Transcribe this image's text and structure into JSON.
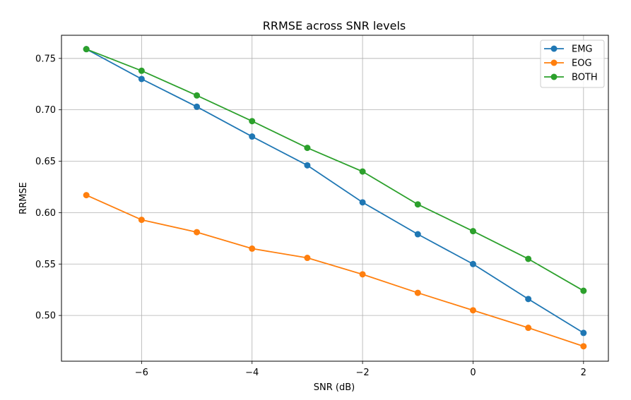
{
  "chart_data": {
    "type": "line",
    "title": "RRMSE across SNR levels",
    "xlabel": "SNR (dB)",
    "ylabel": "RRMSE",
    "x": [
      -7,
      -6,
      -5,
      -4,
      -3,
      -2,
      -1,
      0,
      1,
      2
    ],
    "series": [
      {
        "name": "EMG",
        "color": "#1f77b4",
        "values": [
          0.759,
          0.73,
          0.703,
          0.674,
          0.646,
          0.61,
          0.579,
          0.55,
          0.516,
          0.483
        ]
      },
      {
        "name": "EOG",
        "color": "#ff7f0e",
        "values": [
          0.617,
          0.593,
          0.581,
          0.565,
          0.556,
          0.54,
          0.522,
          0.505,
          0.488,
          0.47
        ]
      },
      {
        "name": "BOTH",
        "color": "#2ca02c",
        "values": [
          0.759,
          0.738,
          0.714,
          0.689,
          0.663,
          0.64,
          0.608,
          0.582,
          0.555,
          0.524
        ]
      }
    ],
    "xlim": [
      -7.45,
      2.45
    ],
    "ylim": [
      0.4555,
      0.7725
    ],
    "xticks": [
      -6,
      -4,
      -2,
      0,
      2
    ],
    "xtick_labels": [
      "−6",
      "−4",
      "−2",
      "0",
      "2"
    ],
    "yticks": [
      0.5,
      0.55,
      0.6,
      0.65,
      0.7,
      0.75
    ],
    "ytick_labels": [
      "0.50",
      "0.55",
      "0.60",
      "0.65",
      "0.70",
      "0.75"
    ],
    "grid": true,
    "legend_position": "top-right",
    "markers": "circle"
  }
}
